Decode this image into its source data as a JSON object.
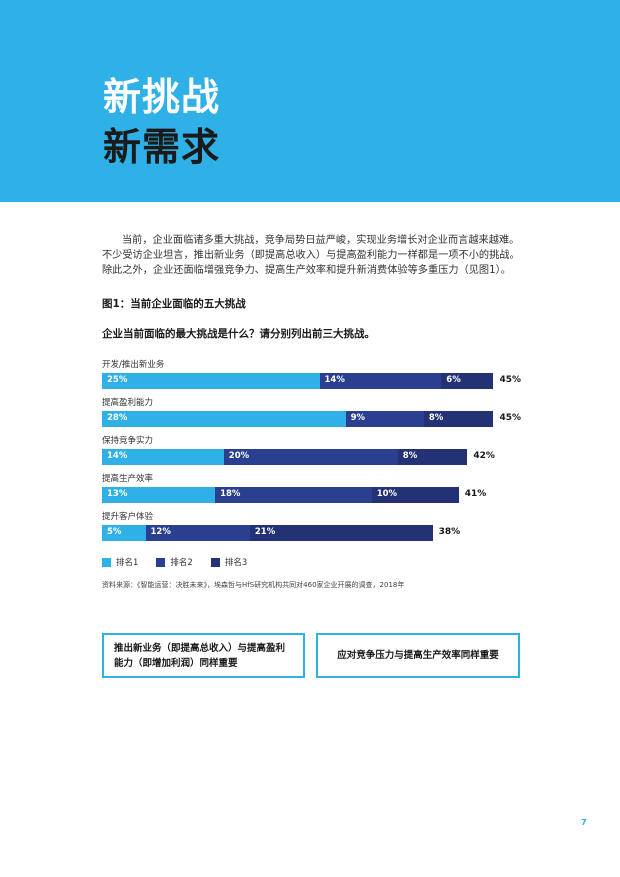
{
  "header": {
    "title_line1": "新挑战",
    "title_line2": "新需求"
  },
  "intro": "当前，企业面临诸多重大挑战，竞争局势日益严峻，实现业务增长对企业而言越来越难。不少受访企业坦言，推出新业务（即提高总收入）与提高盈利能力一样都是一项不小的挑战。除此之外，企业还面临增强竞争力、提高生产效率和提升新消费体验等多重压力（见图1）。",
  "figure_title": "图1：当前企业面临的五大挑战",
  "question": "企业当前面临的最大挑战是什么？请分别列出前三大挑战。",
  "chart_data": {
    "type": "bar",
    "orientation": "horizontal-stacked",
    "categories": [
      "开发/推出新业务",
      "提高盈利能力",
      "保持竞争实力",
      "提高生产效率",
      "提升客户体验"
    ],
    "series": [
      {
        "name": "排名1",
        "values": [
          25,
          28,
          14,
          13,
          5
        ],
        "labels": [
          "25%",
          "28%",
          "14%",
          "13%",
          "5%"
        ],
        "color": "#2fb0e6"
      },
      {
        "name": "排名2",
        "values": [
          14,
          9,
          20,
          18,
          12
        ],
        "labels": [
          "14%",
          "9%",
          "20%",
          "18%",
          "12%"
        ],
        "color": "#2a3f8f"
      },
      {
        "name": "排名3",
        "values": [
          6,
          8,
          8,
          10,
          21
        ],
        "labels": [
          "6%",
          "8%",
          "8%",
          "10%",
          "21%"
        ],
        "color": "#233175"
      }
    ],
    "totals": [
      "45%",
      "45%",
      "42%",
      "41%",
      "38%"
    ],
    "legend_placement": "bottom-left"
  },
  "source": "资料来源：《智能运营：决胜未来》，埃森哲与HfS研究机构共同对460家企业开展的调查，2018年",
  "callouts": [
    "推出新业务（即提高总收入）与提高盈利能力（即增加利润）同样重要",
    "应对竞争压力与提高生产效率同样重要"
  ],
  "page_number": "7"
}
